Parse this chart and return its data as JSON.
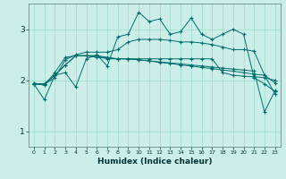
{
  "xlabel": "Humidex (Indice chaleur)",
  "xlim": [
    -0.5,
    23.5
  ],
  "ylim": [
    0.7,
    3.5
  ],
  "yticks": [
    1,
    2,
    3
  ],
  "bg_color": "#cceee8",
  "line_color": "#006e6e",
  "grid_color": "#99ddcc",
  "hours": [
    0,
    1,
    2,
    3,
    4,
    5,
    6,
    7,
    8,
    9,
    10,
    11,
    12,
    13,
    14,
    15,
    16,
    17,
    18,
    19,
    20,
    21,
    22,
    23
  ],
  "lines": [
    [
      1.93,
      1.62,
      2.1,
      2.15,
      1.87,
      2.42,
      2.5,
      2.28,
      2.85,
      2.9,
      3.33,
      3.15,
      3.2,
      2.9,
      2.95,
      3.22,
      2.9,
      2.8,
      2.9,
      3.0,
      2.9,
      2.05,
      1.93,
      1.78
    ],
    [
      1.95,
      1.9,
      2.15,
      2.45,
      2.48,
      2.48,
      2.48,
      2.42,
      2.42,
      2.42,
      2.42,
      2.42,
      2.42,
      2.42,
      2.42,
      2.42,
      2.42,
      2.42,
      2.15,
      2.1,
      2.08,
      2.07,
      2.05,
      2.0
    ],
    [
      1.92,
      1.92,
      2.05,
      2.4,
      2.5,
      2.55,
      2.55,
      2.55,
      2.6,
      2.75,
      2.8,
      2.8,
      2.8,
      2.78,
      2.75,
      2.75,
      2.73,
      2.7,
      2.65,
      2.6,
      2.6,
      2.57,
      2.1,
      1.73
    ],
    [
      1.93,
      1.93,
      2.1,
      2.3,
      2.48,
      2.48,
      2.45,
      2.43,
      2.42,
      2.42,
      2.4,
      2.38,
      2.35,
      2.33,
      2.3,
      2.28,
      2.25,
      2.23,
      2.2,
      2.18,
      2.15,
      2.12,
      2.1,
      1.95
    ],
    [
      1.93,
      1.93,
      2.1,
      2.3,
      2.48,
      2.48,
      2.48,
      2.45,
      2.42,
      2.42,
      2.4,
      2.38,
      2.36,
      2.34,
      2.32,
      2.3,
      2.28,
      2.26,
      2.24,
      2.22,
      2.2,
      2.18,
      1.38,
      1.8
    ]
  ]
}
